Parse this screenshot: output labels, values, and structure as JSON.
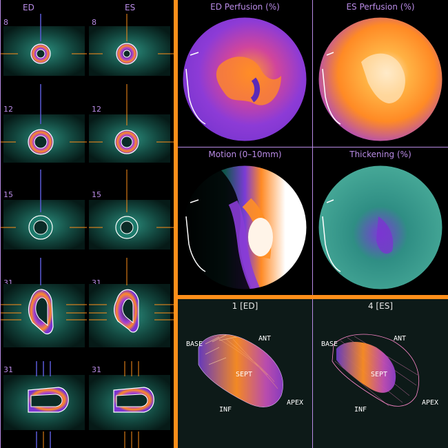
{
  "slice_panel": {
    "col_labels": [
      "ED",
      "ES"
    ],
    "rows": [
      {
        "num_ed": "8",
        "num_es": "8"
      },
      {
        "num_ed": "12",
        "num_es": "12"
      },
      {
        "num_ed": "15",
        "num_es": "15"
      },
      {
        "num_ed": "31",
        "num_es": "31"
      },
      {
        "num_ed": "31",
        "num_es": "31"
      }
    ]
  },
  "polar_maps": [
    {
      "title": "ED Perfusion (%)"
    },
    {
      "title": "ES Perfusion (%)"
    },
    {
      "title": "Motion (0–10mm)"
    },
    {
      "title": "Thickening (%)"
    }
  ],
  "surface_views": [
    {
      "title": "1 [ED]",
      "labels": {
        "base": "BASE",
        "ant": "ANT",
        "sept": "SEPT",
        "inf": "INF",
        "apex": "APEX"
      }
    },
    {
      "title": "4 [ES]",
      "labels": {
        "base": "BASE",
        "ant": "ANT",
        "sept": "SEPT",
        "inf": "INF",
        "apex": "APEX"
      }
    }
  ],
  "colors": {
    "divider": "#ff8f1a",
    "label": "#b98be6",
    "heart_teal": "#1a6e62"
  }
}
